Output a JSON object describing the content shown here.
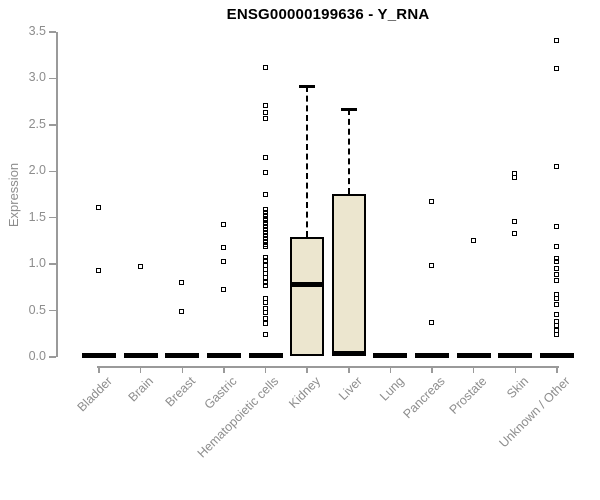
{
  "chart_data": {
    "type": "boxplot",
    "title": "ENSG00000199636 - Y_RNA",
    "ylabel": "Expression",
    "xlabel": "",
    "ylim": [
      0,
      3.5
    ],
    "ytick_labels": [
      "0.0",
      "0.5",
      "1.0",
      "1.5",
      "2.0",
      "2.5",
      "3.0",
      "3.5"
    ],
    "grid": false,
    "legend": null,
    "colors": {
      "box_fill": "#ECE6CF",
      "box_border": "#000000",
      "point": "#000000",
      "median": "#000000",
      "axis": "#9a9a9a",
      "axis_text": "#8d8d8d",
      "title_text": "#000000"
    },
    "categories": [
      {
        "label": "Bladder",
        "median": 0,
        "box": null,
        "points": [
          1.6,
          0.93
        ]
      },
      {
        "label": "Brain",
        "median": 0,
        "box": null,
        "points": [
          0.97
        ]
      },
      {
        "label": "Breast",
        "median": 0,
        "box": null,
        "points": [
          0.8,
          0.48
        ]
      },
      {
        "label": "Gastric",
        "median": 0,
        "box": null,
        "points": [
          1.42,
          1.17,
          1.02,
          0.72
        ]
      },
      {
        "label": "Hematopoietic cells",
        "median": 0,
        "box": null,
        "points": [
          3.11,
          2.7,
          2.63,
          2.56,
          2.14,
          1.98,
          1.74,
          1.58,
          1.55,
          1.52,
          1.49,
          1.46,
          1.43,
          1.4,
          1.37,
          1.34,
          1.3,
          1.27,
          1.24,
          1.21,
          1.18,
          1.07,
          1.03,
          0.98,
          0.94,
          0.89,
          0.85,
          0.8,
          0.76,
          0.63,
          0.58,
          0.52,
          0.47,
          0.41,
          0.36,
          0.24
        ]
      },
      {
        "label": "Kidney",
        "median": 0.78,
        "box": {
          "q1": 0,
          "median": 0.78,
          "q3": 1.29,
          "whisker_low": 0,
          "whisker_high": 2.92
        },
        "points": []
      },
      {
        "label": "Liver",
        "median": 0,
        "box": {
          "q1": 0,
          "median": 0,
          "q3": 1.76,
          "whisker_low": 0,
          "whisker_high": 2.67
        },
        "points": []
      },
      {
        "label": "Lung",
        "median": 0,
        "box": null,
        "points": []
      },
      {
        "label": "Pancreas",
        "median": 0,
        "box": null,
        "points": [
          1.67,
          0.98,
          0.37
        ]
      },
      {
        "label": "Prostate",
        "median": 0,
        "box": null,
        "points": [
          1.25
        ]
      },
      {
        "label": "Skin",
        "median": 0,
        "box": null,
        "points": [
          1.97,
          1.93,
          1.45,
          1.33
        ]
      },
      {
        "label": "Unknown / Other",
        "median": 0,
        "box": null,
        "points": [
          3.4,
          3.1,
          2.05,
          1.4,
          1.18,
          1.06,
          1.02,
          0.95,
          0.88,
          0.82,
          0.67,
          0.62,
          0.56,
          0.45,
          0.38,
          0.33,
          0.28,
          0.24
        ]
      }
    ]
  }
}
